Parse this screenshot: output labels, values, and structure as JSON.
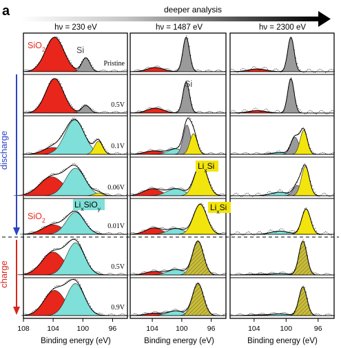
{
  "figure": {
    "panel_letter": "a",
    "arrow_label": "deeper analysis",
    "side_labels": {
      "discharge": "discharge",
      "charge": "charge"
    }
  },
  "chart_data": [
    {
      "type": "area",
      "title": "hν = 230 eV",
      "xlabel": "Binding energy (eV)",
      "xlim": [
        108,
        94
      ],
      "reversed_x": true,
      "xticks": [
        108,
        104,
        100,
        96
      ],
      "ylabel": "",
      "grid": false,
      "rows": [
        "Pristine",
        "0.5V",
        "0.1V",
        "0.06V",
        "0.01V",
        "0.5V",
        "0.9V"
      ],
      "row_groups": {
        "discharge": [
          "Pristine",
          "0.5V",
          "0.1V",
          "0.06V",
          "0.01V"
        ],
        "charge": [
          "0.5V",
          "0.9V"
        ]
      },
      "components": [
        {
          "label": "SiO2",
          "color": "#e8261b",
          "center": 103.8
        },
        {
          "label": "Si",
          "color": "#9a9a9a",
          "center": 99.6
        },
        {
          "label": "LixSiOy",
          "color": "#7ee0d8",
          "center": 101.0
        },
        {
          "label": "LixSi",
          "color": "#f2e40d",
          "center": 97.5
        }
      ],
      "annotations": [
        "SiO2",
        "Si",
        "LixSiOy",
        "SiO2"
      ]
    },
    {
      "type": "area",
      "title": "hν = 1487 eV",
      "xlabel": "Binding energy (eV)",
      "xlim": [
        107,
        94
      ],
      "reversed_x": true,
      "xticks": [
        104,
        100,
        96
      ],
      "grid": false,
      "rows": [
        "Pristine",
        "0.5V",
        "0.1V",
        "0.06V",
        "0.01V",
        "0.5V",
        "0.9V"
      ],
      "components": [
        {
          "label": "SiO2",
          "color": "#e8261b",
          "center": 103.6
        },
        {
          "label": "Si",
          "color": "#9a9a9a",
          "center": 99.4
        },
        {
          "label": "LixSiOy",
          "color": "#7ee0d8",
          "center": 100.8
        },
        {
          "label": "LixSi",
          "color": "#f2e40d",
          "center": 97.5
        },
        {
          "label": "LixSi (charge)",
          "color": "#c9bd3a",
          "center": 97.8
        }
      ],
      "annotations": [
        "Si",
        "LixSi",
        "LixSi"
      ]
    },
    {
      "type": "area",
      "title": "hν  = 2300 eV",
      "xlabel": "Binding energy (eV)",
      "xlim": [
        107,
        94
      ],
      "reversed_x": true,
      "xticks": [
        104,
        100,
        96
      ],
      "grid": false,
      "rows": [
        "Pristine",
        "0.5V",
        "0.1V",
        "0.06V",
        "0.01V",
        "0.5V",
        "0.9V"
      ],
      "components": [
        {
          "label": "SiO2",
          "color": "#e8261b",
          "center": 103.6
        },
        {
          "label": "Si",
          "color": "#9a9a9a",
          "center": 99.4
        },
        {
          "label": "LixSiOy",
          "color": "#7ee0d8",
          "center": 100.8
        },
        {
          "label": "LixSi",
          "color": "#f2e40d",
          "center": 97.5
        },
        {
          "label": "LixSi (charge)",
          "color": "#c9bd3a",
          "center": 97.8
        }
      ]
    }
  ]
}
